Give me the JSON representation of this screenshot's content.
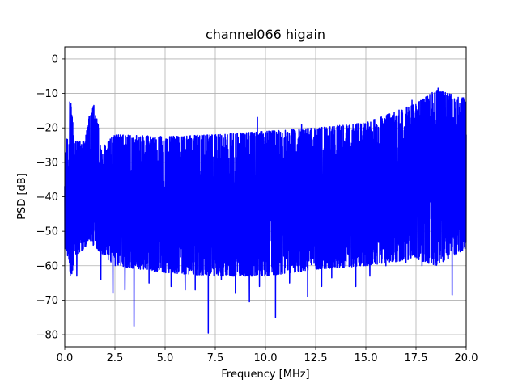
{
  "chart_data": {
    "type": "line",
    "title": "channel066 higain",
    "xlabel": "Frequency [MHz]",
    "ylabel": "PSD [dB]",
    "xlim": [
      0,
      20
    ],
    "ylim": [
      -83.5,
      3.5
    ],
    "x_ticks": [
      0.0,
      2.5,
      5.0,
      7.5,
      10.0,
      12.5,
      15.0,
      17.5,
      20.0
    ],
    "x_tick_labels": [
      "0.0",
      "2.5",
      "5.0",
      "7.5",
      "10.0",
      "12.5",
      "15.0",
      "17.5",
      "20.0"
    ],
    "y_ticks": [
      0,
      -10,
      -20,
      -30,
      -40,
      -50,
      -60,
      -70,
      -80
    ],
    "y_tick_labels": [
      "0",
      "−10",
      "−20",
      "−30",
      "−40",
      "−50",
      "−60",
      "−70",
      "−80"
    ],
    "grid": true,
    "legend": "none",
    "series": [
      {
        "color": "#0000ff",
        "envelope_x": [
          0.0,
          0.2,
          0.3,
          0.5,
          1.0,
          1.2,
          1.4,
          1.6,
          1.9,
          2.5,
          5.0,
          7.5,
          10.0,
          12.5,
          15.0,
          17.5,
          18.5,
          20.0
        ],
        "envelope_upper": [
          -22,
          -24,
          -12.5,
          -24,
          -24,
          -17,
          -13.5,
          -17,
          -25,
          -22,
          -22.5,
          -22,
          -21,
          -20,
          -18.5,
          -13,
          -9,
          -11.5
        ],
        "envelope_lower": [
          -55,
          -58,
          -65,
          -57,
          -55,
          -52,
          -54,
          -55,
          -57,
          -60,
          -62,
          -63,
          -63,
          -61,
          -60,
          -58,
          -60,
          -55
        ],
        "dips": [
          {
            "x": 0.25,
            "y": -65.5
          },
          {
            "x": 0.6,
            "y": -63
          },
          {
            "x": 1.8,
            "y": -64
          },
          {
            "x": 2.4,
            "y": -68
          },
          {
            "x": 3.0,
            "y": -67
          },
          {
            "x": 3.45,
            "y": -77.5
          },
          {
            "x": 4.2,
            "y": -65
          },
          {
            "x": 5.3,
            "y": -66
          },
          {
            "x": 6.0,
            "y": -67
          },
          {
            "x": 6.5,
            "y": -67
          },
          {
            "x": 7.15,
            "y": -79.5
          },
          {
            "x": 7.8,
            "y": -64
          },
          {
            "x": 8.5,
            "y": -68
          },
          {
            "x": 9.2,
            "y": -70.5
          },
          {
            "x": 9.7,
            "y": -66
          },
          {
            "x": 10.5,
            "y": -75
          },
          {
            "x": 11.2,
            "y": -65
          },
          {
            "x": 12.1,
            "y": -69
          },
          {
            "x": 12.8,
            "y": -66
          },
          {
            "x": 13.3,
            "y": -63.5
          },
          {
            "x": 14.5,
            "y": -66
          },
          {
            "x": 15.2,
            "y": -63
          },
          {
            "x": 16.0,
            "y": -60
          },
          {
            "x": 17.0,
            "y": -59
          },
          {
            "x": 17.8,
            "y": -60
          },
          {
            "x": 19.3,
            "y": -68.5
          }
        ],
        "peaks": [
          {
            "x": 0.25,
            "y": -12.5
          },
          {
            "x": 1.45,
            "y": -13.5
          },
          {
            "x": 9.6,
            "y": -17
          },
          {
            "x": 11.8,
            "y": -19
          },
          {
            "x": 17.3,
            "y": -12
          },
          {
            "x": 18.6,
            "y": -8.5
          }
        ]
      }
    ]
  }
}
